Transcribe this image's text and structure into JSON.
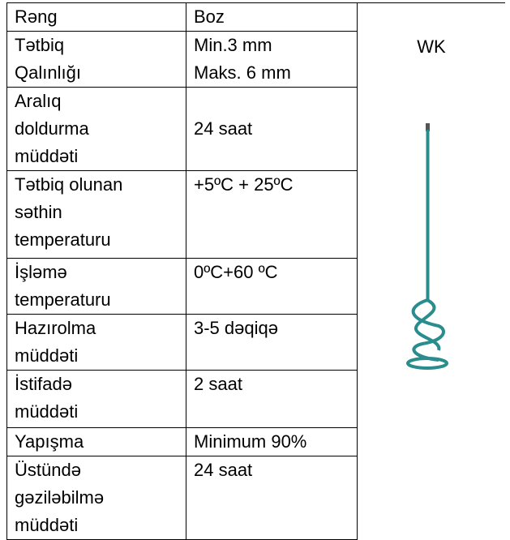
{
  "table": {
    "rows": [
      [
        [
          "Rəng"
        ],
        [
          "Boz"
        ]
      ],
      [
        [
          "Tətbiq",
          "Qalınlığı"
        ],
        [
          "Min.3 mm",
          "Maks. 6 mm"
        ]
      ],
      [
        [
          "Aralıq",
          "doldurma",
          "müddəti"
        ],
        [
          "24 saat"
        ]
      ],
      [
        [
          "Tətbiq olunan",
          "səthin",
          "temperaturu"
        ],
        [
          "+5ºC + 25ºC"
        ]
      ],
      [
        [
          "İşləmə",
          "temperaturu"
        ],
        [
          "0ºC+60 ºC"
        ]
      ],
      [
        [
          "Hazırolma",
          "müddəti"
        ],
        [
          "3-5 dəqiqə"
        ]
      ],
      [
        [
          "İstifadə",
          "müddəti"
        ],
        [
          "2 saat"
        ]
      ],
      [
        [
          "Yapışma"
        ],
        [
          "Minimum 90%"
        ]
      ],
      [
        [
          "Üstündə",
          "gəziləbilmə",
          "müddəti"
        ],
        [
          "24 saat"
        ]
      ]
    ]
  },
  "side": {
    "label": "WK"
  }
}
